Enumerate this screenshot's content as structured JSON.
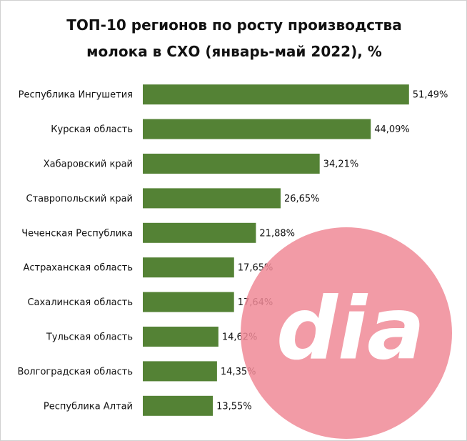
{
  "chart_data": {
    "type": "hbar",
    "title": "ТОП-10 регионов по росту производства молока в СХО (январь-май 2022), %",
    "categories": [
      "Республика Ингушетия",
      "Курская область",
      "Хабаровский край",
      "Ставропольский край",
      "Чеченская Республика",
      "Астраханская область",
      "Сахалинская область",
      "Тульская область",
      "Волгоградская область",
      "Республика Алтай"
    ],
    "values": [
      51.49,
      44.09,
      34.21,
      26.65,
      21.88,
      17.65,
      17.64,
      14.62,
      14.35,
      13.55
    ],
    "value_labels": [
      "51,49%",
      "44,09%",
      "34,21%",
      "26,65%",
      "21,88%",
      "17,65%",
      "17,64%",
      "14,62%",
      "14,35%",
      "13,55%"
    ],
    "color": "#548235"
  },
  "watermark": "dia"
}
